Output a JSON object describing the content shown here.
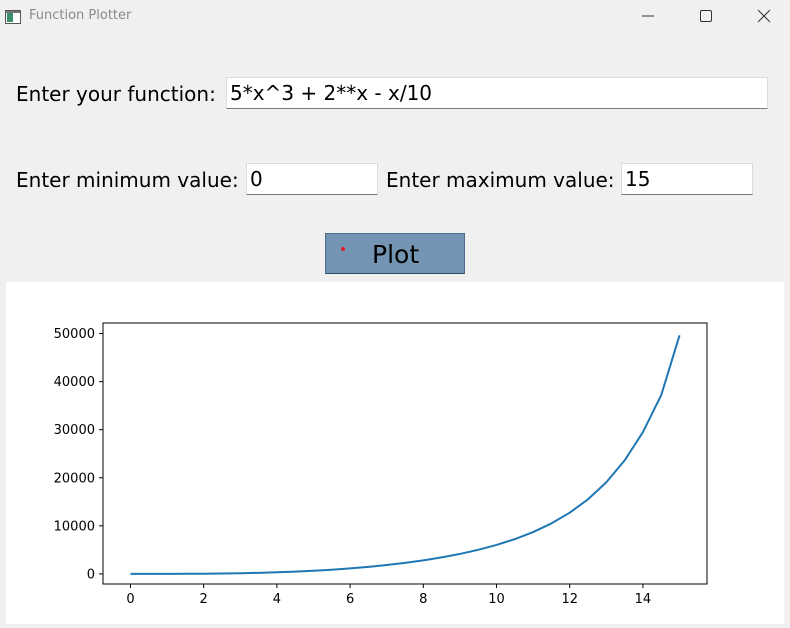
{
  "window": {
    "title": "Function Plotter",
    "icons": {
      "app": "app-window-icon",
      "minimize": "minimize-icon",
      "maximize": "maximize-icon",
      "close": "close-icon"
    }
  },
  "form": {
    "function_label": "Enter your function:",
    "function_value": "5*x^3 + 2**x - x/10",
    "min_label": "Enter minimum value:",
    "min_value": "0",
    "max_label": "Enter maximum value:",
    "max_value": "15",
    "plot_button": "Plot"
  },
  "colors": {
    "line": "#1f77b4",
    "plot_button": "#7394b3",
    "background": "#f0f0f0"
  },
  "chart_data": {
    "type": "line",
    "xlim": [
      -0.75,
      15.75
    ],
    "ylim": [
      -2100,
      52200
    ],
    "xticks": [
      0,
      2,
      4,
      6,
      8,
      10,
      12,
      14
    ],
    "yticks": [
      0,
      10000,
      20000,
      30000,
      40000,
      50000
    ],
    "xtick_labels": [
      "0",
      "2",
      "4",
      "6",
      "8",
      "10",
      "12",
      "14"
    ],
    "ytick_labels": [
      "0",
      "10000",
      "20000",
      "30000",
      "40000",
      "50000"
    ],
    "series": [
      {
        "x": [
          0,
          0.5,
          1,
          1.5,
          2,
          2.5,
          3,
          3.5,
          4,
          4.5,
          5,
          5.5,
          6,
          6.5,
          7,
          7.5,
          8,
          8.5,
          9,
          9.5,
          10,
          10.5,
          11,
          11.5,
          12,
          12.5,
          13,
          13.5,
          14,
          14.5,
          15
        ],
        "y": [
          1,
          2,
          7,
          20,
          44,
          84,
          143,
          225,
          336,
          478,
          656,
          877,
          1143,
          1463,
          1842,
          2291,
          2816,
          3431,
          4157,
          5012,
          6023,
          7236,
          8702,
          10505,
          12735,
          15527,
          19071,
          23614,
          29504,
          37214,
          49641
        ]
      }
    ],
    "grid": false,
    "legend": false
  }
}
